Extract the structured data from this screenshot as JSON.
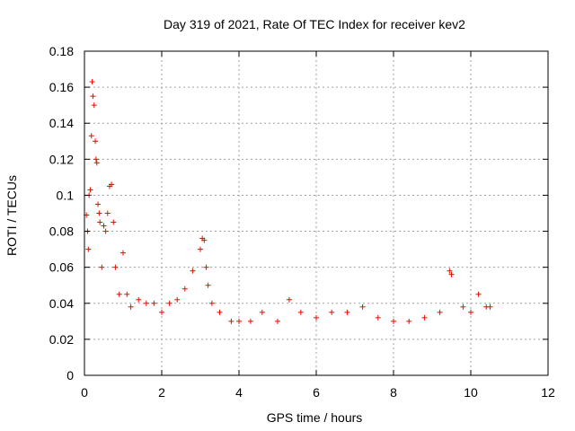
{
  "chart_data": {
    "type": "scatter",
    "title": "Day 319 of 2021, Rate Of TEC Index for receiver kev2",
    "xlabel": "GPS time / hours",
    "ylabel": "ROTI / TECUs",
    "xlim": [
      0,
      12
    ],
    "ylim": [
      0,
      0.18
    ],
    "x_ticks": [
      "0",
      "2",
      "4",
      "6",
      "8",
      "10",
      "12"
    ],
    "y_ticks": [
      "0",
      "0.02",
      "0.04",
      "0.06",
      "0.08",
      "0.1",
      "0.12",
      "0.14",
      "0.16",
      "0.18"
    ],
    "grid": true,
    "marker": "+",
    "series": [
      {
        "name": "ROTI",
        "color": "#ff0000",
        "x": [
          0.05,
          0.08,
          0.1,
          0.12,
          0.15,
          0.18,
          0.2,
          0.22,
          0.25,
          0.28,
          0.3,
          0.32,
          0.35,
          0.38,
          0.4,
          0.45,
          0.5,
          0.55,
          0.6,
          0.65,
          0.7,
          0.75,
          0.8,
          0.9,
          1.0,
          1.1,
          1.2,
          1.4,
          1.6,
          1.8,
          2.0,
          2.2,
          2.4,
          2.6,
          2.8,
          3.0,
          3.05,
          3.1,
          3.15,
          3.2,
          3.3,
          3.5,
          3.8,
          4.0,
          4.3,
          4.6,
          5.0,
          5.3,
          5.6,
          6.0,
          6.4,
          6.8,
          7.2,
          7.6,
          8.0,
          8.4,
          8.8,
          9.2,
          9.45,
          9.5,
          9.8,
          10.0,
          10.2,
          10.4,
          10.5
        ],
        "y": [
          0.089,
          0.08,
          0.07,
          0.1,
          0.103,
          0.133,
          0.163,
          0.155,
          0.15,
          0.13,
          0.12,
          0.118,
          0.095,
          0.09,
          0.085,
          0.06,
          0.083,
          0.08,
          0.09,
          0.105,
          0.106,
          0.085,
          0.06,
          0.045,
          0.068,
          0.045,
          0.038,
          0.042,
          0.04,
          0.04,
          0.035,
          0.04,
          0.042,
          0.048,
          0.058,
          0.07,
          0.076,
          0.075,
          0.06,
          0.05,
          0.04,
          0.035,
          0.03,
          0.03,
          0.03,
          0.035,
          0.03,
          0.042,
          0.035,
          0.032,
          0.035,
          0.035,
          0.038,
          0.032,
          0.03,
          0.03,
          0.032,
          0.035,
          0.058,
          0.056,
          0.038,
          0.035,
          0.045,
          0.038,
          0.038
        ]
      }
    ]
  }
}
